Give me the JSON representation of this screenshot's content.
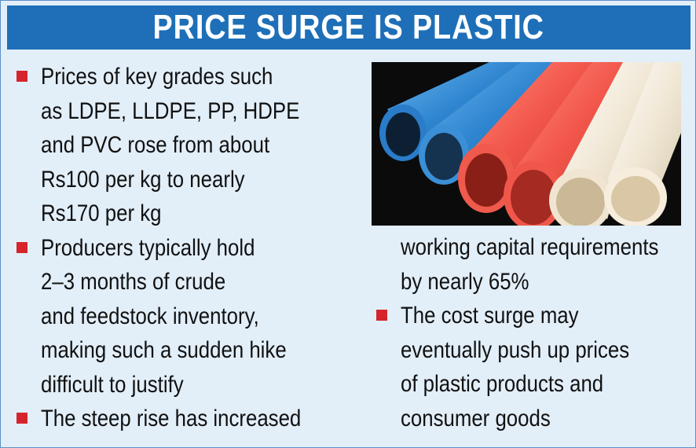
{
  "headline": "PRICE SURGE IS PLASTIC",
  "left_column": [
    {
      "text": "Prices of key grades such\nas LDPE, LLDPE, PP, HDPE\nand PVC rose from about\nRs100 per kg to nearly\nRs170 per kg"
    },
    {
      "text": "Producers typically hold\n2–3 months of crude\nand feedstock inventory,\nmaking such a sudden hike\ndifficult to justify"
    },
    {
      "text": "The steep rise has increased"
    }
  ],
  "right_column": {
    "continuation": "working capital requirements\nby nearly 65%",
    "items": [
      {
        "text": "The cost surge may\neventually push up prices\nof plastic products and\nconsumer goods"
      }
    ]
  },
  "colors": {
    "banner": "#1e6fb7",
    "background": "#e2eef8",
    "bullet": "#d5242c",
    "pipe_blue": "#3a8fd6",
    "pipe_red": "#f0574a",
    "pipe_cream": "#f3ead8"
  },
  "photo": {
    "subject": "stack of plastic pipes: two blue, two red, two cream"
  }
}
